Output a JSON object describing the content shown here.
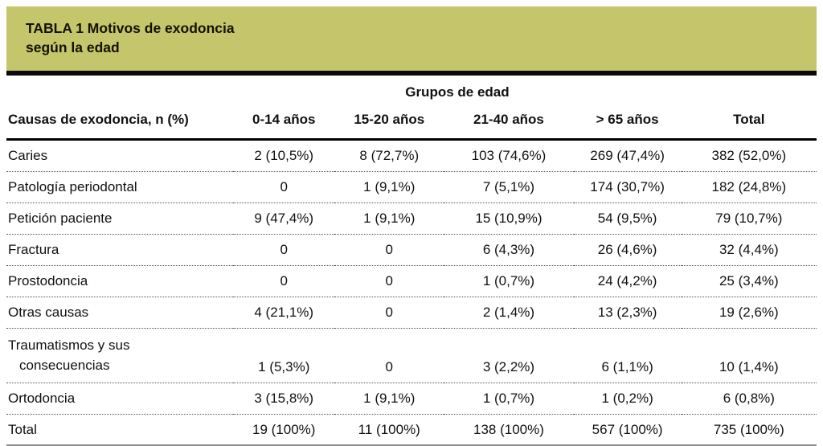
{
  "title": {
    "line1": "TABLA 1 Motivos de exodoncia",
    "line2": "según la edad"
  },
  "table": {
    "group_header": "Grupos de edad",
    "columns": [
      "Causas de exodoncia, n (%)",
      "0-14 años",
      "15-20 años",
      "21-40 años",
      "> 65 años",
      "Total"
    ],
    "rows": [
      {
        "cells": [
          "Caries",
          "2 (10,5%)",
          "8 (72,7%)",
          "103 (74,6%)",
          "269 (47,4%)",
          "382 (52,0%)"
        ]
      },
      {
        "cells": [
          "Patología periodontal",
          "0",
          "1 (9,1%)",
          "7 (5,1%)",
          "174 (30,7%)",
          "182 (24,8%)"
        ]
      },
      {
        "cells": [
          "Petición paciente",
          "9 (47,4%)",
          "1 (9,1%)",
          "15 (10,9%)",
          "54 (9,5%)",
          "79 (10,7%)"
        ]
      },
      {
        "cells": [
          "Fractura",
          "0",
          "0",
          "6 (4,3%)",
          "26 (4,6%)",
          "32 (4,4%)"
        ]
      },
      {
        "cells": [
          "Prostodoncia",
          "0",
          "0",
          "1 (0,7%)",
          "24 (4,2%)",
          "25 (3,4%)"
        ]
      },
      {
        "cells": [
          "Otras causas",
          "4 (21,1%)",
          "0",
          "2 (1,4%)",
          "13 (2,3%)",
          "19 (2,6%)"
        ]
      },
      {
        "cells": [
          "Traumatismos y sus",
          "1 (5,3%)",
          "0",
          "3 (2,2%)",
          "6 (1,1%)",
          "10 (1,4%)"
        ],
        "label_line2": "consecuencias"
      },
      {
        "cells": [
          "Ortodoncia",
          "3 (15,8%)",
          "1 (9,1%)",
          "1 (0,7%)",
          "1 (0,2%)",
          "6 (0,8%)"
        ]
      },
      {
        "cells": [
          "Total",
          "19 (100%)",
          "11 (100%)",
          "138 (100%)",
          "567 (100%)",
          "735 (100%)"
        ],
        "is_total": true
      }
    ]
  },
  "colors": {
    "title_band_background": "#c5c56c",
    "title_rule": "#0a0a0a",
    "header_rule": "#000000",
    "row_separator": "#555555",
    "bottom_rule": "#8c8c8c"
  }
}
